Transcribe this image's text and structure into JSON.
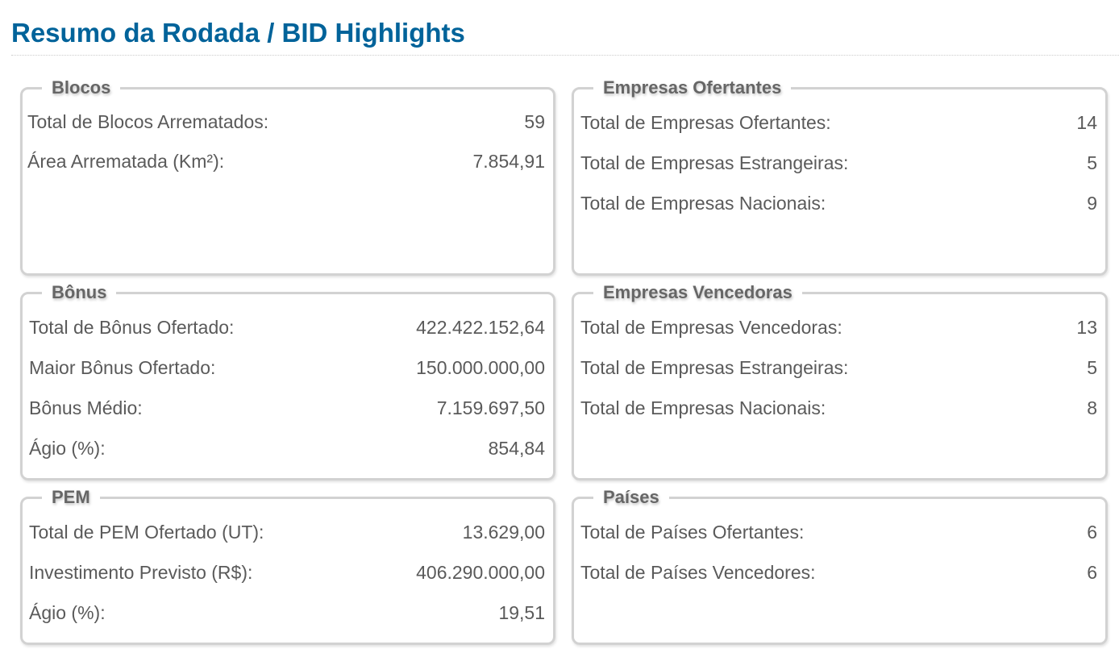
{
  "title": "Resumo da Rodada / BID Highlights",
  "panels": [
    {
      "legend": "Blocos",
      "rows": [
        {
          "label": "Total de Blocos Arrematados:",
          "value": "59"
        },
        {
          "label": "Área Arrematada (Km²):",
          "value": "7.854,91"
        }
      ]
    },
    {
      "legend": "Empresas Ofertantes",
      "rows": [
        {
          "label": "Total de Empresas Ofertantes:",
          "value": "14"
        },
        {
          "label": "Total de Empresas Estrangeiras:",
          "value": "5"
        },
        {
          "label": "Total de Empresas Nacionais:",
          "value": "9"
        }
      ]
    },
    {
      "legend": "Bônus",
      "rows": [
        {
          "label": "Total de Bônus Ofertado:",
          "value": "422.422.152,64"
        },
        {
          "label": "Maior Bônus Ofertado:",
          "value": "150.000.000,00"
        },
        {
          "label": "Bônus Médio:",
          "value": "7.159.697,50"
        },
        {
          "label": "Ágio (%):",
          "value": "854,84"
        }
      ]
    },
    {
      "legend": "Empresas Vencedoras",
      "rows": [
        {
          "label": "Total de Empresas Vencedoras:",
          "value": "13"
        },
        {
          "label": "Total de Empresas Estrangeiras:",
          "value": "5"
        },
        {
          "label": "Total de Empresas Nacionais:",
          "value": "8"
        }
      ]
    },
    {
      "legend": "PEM",
      "rows": [
        {
          "label": "Total de PEM Ofertado (UT):",
          "value": "13.629,00"
        },
        {
          "label": "Investimento Previsto (R$):",
          "value": "406.290.000,00"
        },
        {
          "label": "Ágio (%):",
          "value": "19,51"
        }
      ]
    },
    {
      "legend": "Países",
      "rows": [
        {
          "label": "Total de Países Ofertantes:",
          "value": "6"
        },
        {
          "label": "Total de Países Vencedores:",
          "value": "6"
        }
      ]
    }
  ]
}
